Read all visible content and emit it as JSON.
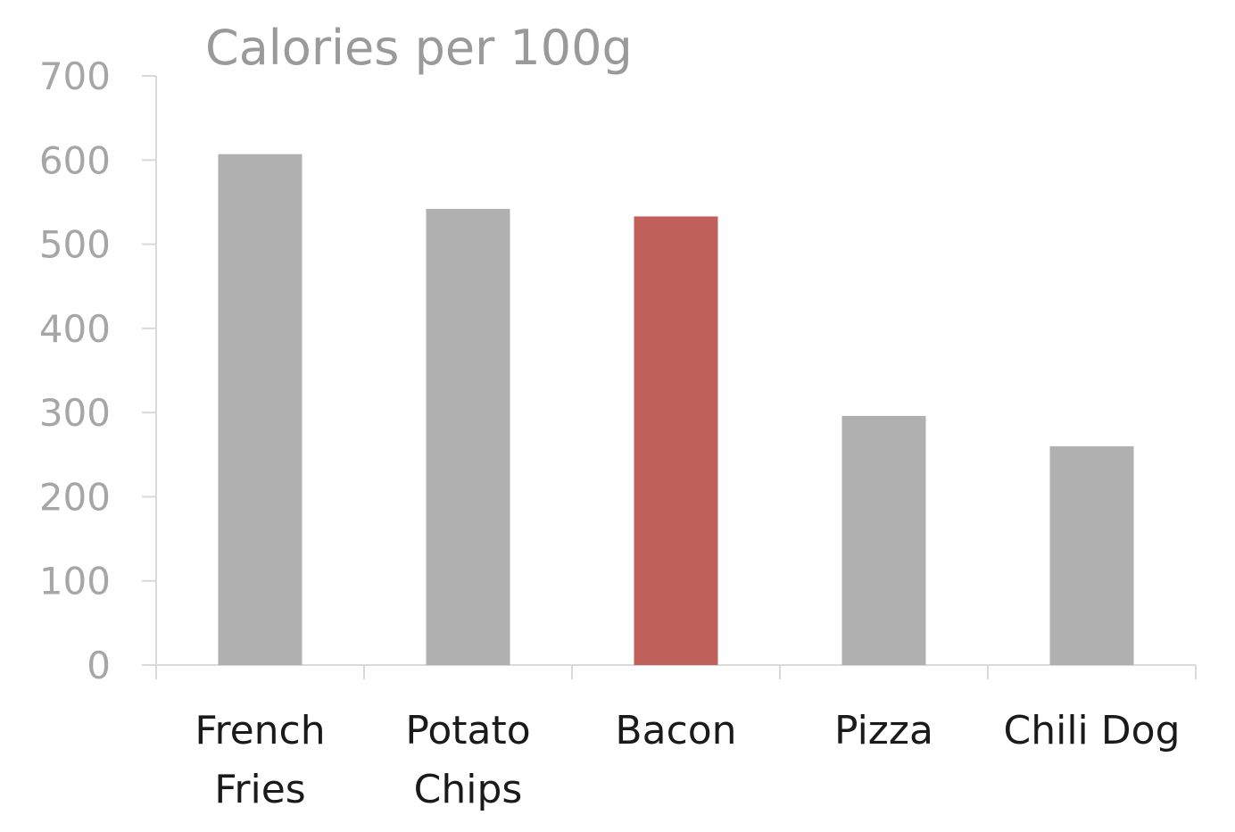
{
  "chart_data": {
    "type": "bar",
    "title": "Calories per 100g",
    "categories": [
      "French Fries",
      "Potato Chips",
      "Bacon",
      "Pizza",
      "Chili Dog"
    ],
    "category_lines": [
      [
        "French",
        "Fries"
      ],
      [
        "Potato",
        "Chips"
      ],
      [
        "Bacon"
      ],
      [
        "Pizza"
      ],
      [
        "Chili Dog"
      ]
    ],
    "values": [
      607,
      542,
      533,
      296,
      260
    ],
    "ylim": [
      0,
      700
    ],
    "y_ticks": [
      "0",
      "100",
      "200",
      "300",
      "400",
      "500",
      "600",
      "700"
    ],
    "xlabel": "",
    "ylabel": "",
    "grid": false,
    "legend": "none",
    "colors": {
      "default_bar": "#b0b0b0",
      "highlight_bar": "#c0605a",
      "highlight_category": "Bacon",
      "axis": "#d9d9d9",
      "tick_text": "#a6a6a6",
      "category_text": "#1a1a1a",
      "title_text": "#9a9a9a"
    }
  }
}
